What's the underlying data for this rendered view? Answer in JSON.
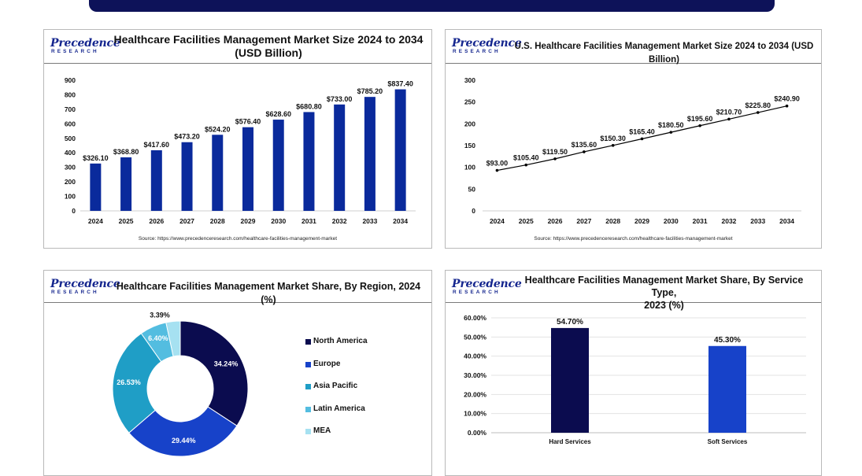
{
  "logo": {
    "main": "Precedence",
    "sub": "RESEARCH"
  },
  "colors": {
    "navy": "#0d1259",
    "bar_blue": "#0a2a9c"
  },
  "chart_data": [
    {
      "type": "bar",
      "title": "Healthcare Facilities Management Market Size 2024 to 2034 (USD Billion)",
      "title_lines": [
        "Healthcare Facilities Management Market Size 2024 to 2034",
        "(USD Billion)"
      ],
      "categories": [
        "2024",
        "2025",
        "2026",
        "2027",
        "2028",
        "2029",
        "2030",
        "2031",
        "2032",
        "2033",
        "2034"
      ],
      "values": [
        326.1,
        368.8,
        417.6,
        473.2,
        524.2,
        576.4,
        628.6,
        680.8,
        733.0,
        785.2,
        837.4
      ],
      "data_labels": [
        "$326.10",
        "$368.80",
        "$417.60",
        "$473.20",
        "$524.20",
        "$576.40",
        "$628.60",
        "$680.80",
        "$733.00",
        "$785.20",
        "$837.40"
      ],
      "yticks": [
        "0",
        "100",
        "200",
        "300",
        "400",
        "500",
        "600",
        "700",
        "800",
        "900"
      ],
      "ylim": [
        0,
        900
      ],
      "color": "#0a2a9c",
      "grid": false,
      "source": "Source: https://www.precedenceresearch.com/healthcare-facilities-management-market"
    },
    {
      "type": "line",
      "title": "U.S. Healthcare Facilities Management Market Size 2024 to 2034 (USD Billion)",
      "categories": [
        "2024",
        "2025",
        "2026",
        "2027",
        "2028",
        "2029",
        "2030",
        "2031",
        "2032",
        "2033",
        "2034"
      ],
      "values": [
        93.0,
        105.4,
        119.5,
        135.6,
        150.3,
        165.4,
        180.5,
        195.6,
        210.7,
        225.8,
        240.9
      ],
      "data_labels": [
        "$93.00",
        "$105.40",
        "$119.50",
        "$135.60",
        "$150.30",
        "$165.40",
        "$180.50",
        "$195.60",
        "$210.70",
        "$225.80",
        "$240.90"
      ],
      "yticks": [
        "0",
        "50",
        "100",
        "150",
        "200",
        "250",
        "300"
      ],
      "ylim": [
        0,
        300
      ],
      "color": "#000000",
      "grid": false,
      "source": "Source: https://www.precedenceresearch.com/healthcare-facilities-management-market"
    },
    {
      "type": "pie",
      "title": "Healthcare Facilities Management Market Share, By Region, 2024 (%)",
      "slices": [
        {
          "name": "North America",
          "value": 34.24,
          "label": "34.24%",
          "color": "#0b0c4f"
        },
        {
          "name": "Europe",
          "value": 29.44,
          "label": "29.44%",
          "color": "#1742c9"
        },
        {
          "name": "Asia Pacific",
          "value": 26.53,
          "label": "26.53%",
          "color": "#1f9ec6"
        },
        {
          "name": "Latin America",
          "value": 6.4,
          "label": "6.40%",
          "color": "#53bde0"
        },
        {
          "name": "MEA",
          "value": 3.39,
          "label": "3.39%",
          "color": "#a6e1f1"
        }
      ],
      "legend": "right"
    },
    {
      "type": "bar",
      "title": "Healthcare Facilities Management Market Share, By Service Type, 2023 (%)",
      "title_lines": [
        "Healthcare Facilities Management Market Share, By Service Type,",
        "2023 (%)"
      ],
      "categories": [
        "Hard Services",
        "Soft Services"
      ],
      "values": [
        54.7,
        45.3
      ],
      "data_labels": [
        "54.70%",
        "45.30%"
      ],
      "colors": [
        "#0b0c4f",
        "#1742c9"
      ],
      "yticks": [
        "0.00%",
        "10.00%",
        "20.00%",
        "30.00%",
        "40.00%",
        "50.00%",
        "60.00%"
      ],
      "ylim": [
        0,
        60
      ],
      "grid": true
    }
  ]
}
